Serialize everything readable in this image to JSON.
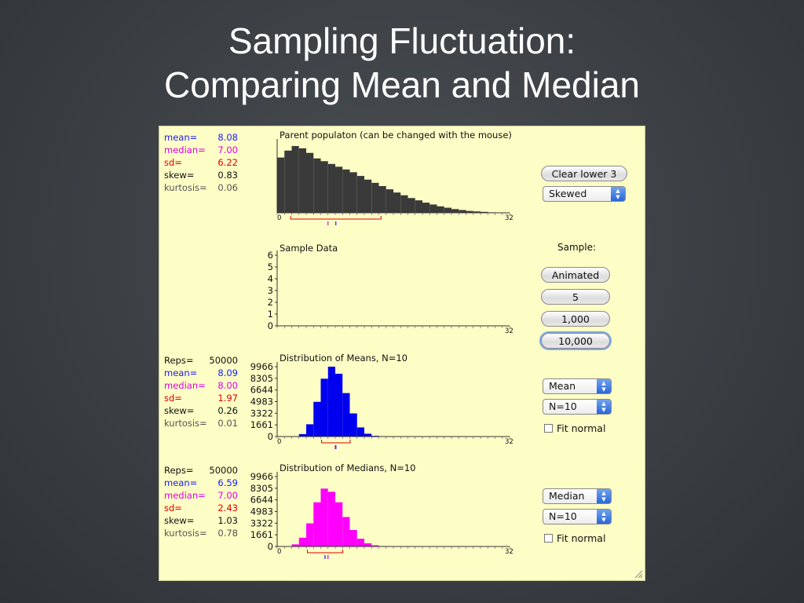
{
  "slide": {
    "title_line1": "Sampling Fluctuation:",
    "title_line2": "Comparing Mean and Median"
  },
  "parent_stats": [
    {
      "label": "mean=",
      "value": "8.08",
      "color": "blue"
    },
    {
      "label": "median=",
      "value": "7.00",
      "color": "magenta"
    },
    {
      "label": "sd=",
      "value": "6.22",
      "color": "red"
    },
    {
      "label": "skew=",
      "value": "0.83",
      "color": "black"
    },
    {
      "label": "kurtosis=",
      "value": "0.06",
      "color": "gray"
    }
  ],
  "means_stats": [
    {
      "label": "Reps=",
      "value": "50000",
      "color": "black"
    },
    {
      "label": "mean=",
      "value": "8.09",
      "color": "blue"
    },
    {
      "label": "median=",
      "value": "8.00",
      "color": "magenta"
    },
    {
      "label": "sd=",
      "value": "1.97",
      "color": "red"
    },
    {
      "label": "skew=",
      "value": "0.26",
      "color": "black"
    },
    {
      "label": "kurtosis=",
      "value": "0.01",
      "color": "gray"
    }
  ],
  "medians_stats": [
    {
      "label": "Reps=",
      "value": "50000",
      "color": "black"
    },
    {
      "label": "mean=",
      "value": "6.59",
      "color": "blue"
    },
    {
      "label": "median=",
      "value": "7.00",
      "color": "magenta"
    },
    {
      "label": "sd=",
      "value": "2.43",
      "color": "red"
    },
    {
      "label": "skew=",
      "value": "1.03",
      "color": "black"
    },
    {
      "label": "kurtosis=",
      "value": "0.78",
      "color": "gray"
    }
  ],
  "controls": {
    "clear_lower_label": "Clear lower 3",
    "shape_select": "Skewed",
    "sample_heading": "Sample:",
    "animated_label": "Animated",
    "n5_label": "5",
    "n1000_label": "1,000",
    "n10000_label": "10,000",
    "stat1_select": "Mean",
    "n1_select": "N=10",
    "fit1_label": "Fit normal",
    "stat2_select": "Median",
    "n2_select": "N=10",
    "fit2_label": "Fit normal"
  },
  "chart_data": [
    {
      "type": "bar",
      "title": "Parent populaton (can be changed with the mouse)",
      "x_range": [
        0,
        32
      ],
      "x_tick_labels": [
        "0",
        "32"
      ],
      "bin_width": 1,
      "values": [
        120,
        135,
        145,
        140,
        130,
        118,
        112,
        106,
        100,
        94,
        88,
        80,
        72,
        65,
        58,
        51,
        44,
        38,
        32,
        27,
        22,
        18,
        14,
        11,
        8,
        6,
        4,
        3,
        2,
        1,
        0,
        0
      ],
      "ylim": [
        0,
        150
      ],
      "color": "#3a3a3a",
      "annotation": {
        "sd_bracket": [
          1.86,
          14.3
        ],
        "mean": 8.08,
        "median": 7.0
      }
    },
    {
      "type": "bar",
      "title": "Sample Data",
      "x_range": [
        0,
        32
      ],
      "x_tick_labels": [
        "32"
      ],
      "y_ticks": [
        0,
        1,
        2,
        3,
        4,
        5,
        6
      ],
      "ylim": [
        0,
        6
      ],
      "values": []
    },
    {
      "type": "bar",
      "title": "Distribution of Means, N=10",
      "x_range": [
        0,
        32
      ],
      "x_tick_labels": [
        "0",
        "32"
      ],
      "y_ticks": [
        0,
        1661,
        3322,
        4983,
        6644,
        8305,
        9966
      ],
      "ylim": [
        0,
        9966
      ],
      "bin_width": 1,
      "values": [
        0,
        0,
        50,
        350,
        1750,
        4950,
        8250,
        9966,
        8950,
        6200,
        3300,
        1300,
        400,
        110,
        30,
        10,
        0,
        0
      ],
      "color": "#0000ee",
      "annotation": {
        "sd_bracket": [
          6.12,
          10.06
        ],
        "mean": 8.09,
        "median": 8.0
      }
    },
    {
      "type": "bar",
      "title": "Distribution of Medians, N=10",
      "x_range": [
        0,
        32
      ],
      "x_tick_labels": [
        "0",
        "32"
      ],
      "y_ticks": [
        0,
        1661,
        3322,
        4983,
        6644,
        8305,
        9966
      ],
      "ylim": [
        0,
        9966
      ],
      "bin_width": 1,
      "values": [
        0,
        0,
        300,
        1250,
        3300,
        6300,
        8250,
        7800,
        6300,
        4200,
        2350,
        1100,
        450,
        170,
        60,
        20,
        0,
        0
      ],
      "color": "#ff00ff",
      "annotation": {
        "sd_bracket": [
          4.16,
          9.02
        ],
        "mean": 6.59,
        "median": 7.0
      }
    }
  ]
}
